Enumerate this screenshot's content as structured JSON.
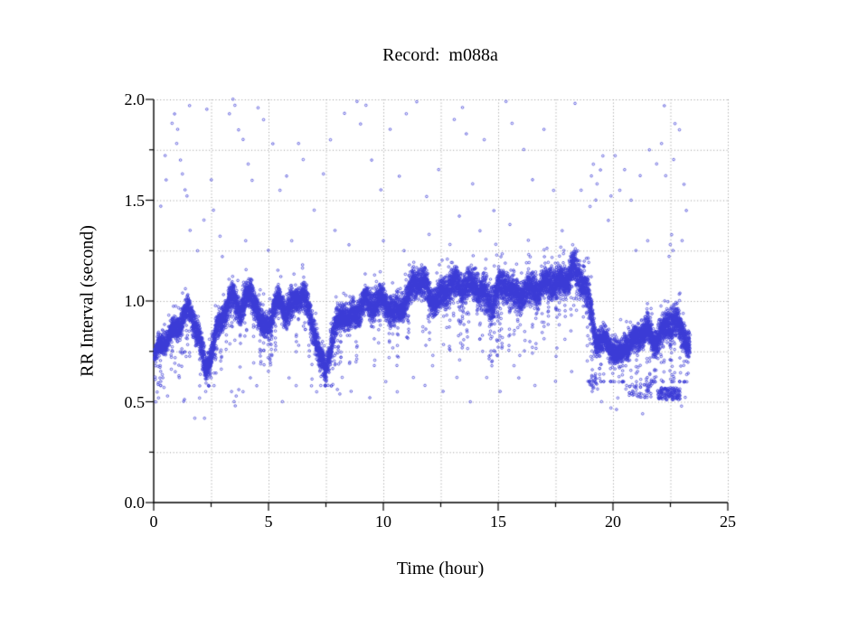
{
  "chart_data": {
    "type": "scatter",
    "title": "Record:  m088a",
    "xlabel": "Time (hour)",
    "ylabel": "RR Interval (second)",
    "xlim": [
      0,
      25
    ],
    "ylim": [
      0.0,
      2.0
    ],
    "x_tick_values": [
      0,
      5,
      10,
      15,
      20,
      25
    ],
    "x_tick_labels": [
      "0",
      "5",
      "10",
      "15",
      "20",
      "25"
    ],
    "x_minor_step": 2.5,
    "y_tick_values": [
      0.0,
      0.5,
      1.0,
      1.5,
      2.0
    ],
    "y_tick_labels": [
      "0.0",
      "0.5",
      "1.0",
      "1.5",
      "2.0"
    ],
    "y_minor_step": 0.25,
    "grid": "dotted, at every minor and major tick",
    "legend": "none",
    "marker": "small open circle",
    "marker_color": "#3b3bd6",
    "grid_color": "#9a9a9a",
    "axis_color": "#000000",
    "background_color": "#ffffff",
    "t_start": 0.04,
    "t_end": 23.35,
    "seed": 987654321,
    "band_t0": 0.0,
    "band_t_step": 0.25,
    "band_mean": [
      0.7,
      0.76,
      0.8,
      0.84,
      0.88,
      0.93,
      0.96,
      0.9,
      0.78,
      0.64,
      0.74,
      0.86,
      0.94,
      1.0,
      1.02,
      0.94,
      0.98,
      1.03,
      0.96,
      0.88,
      0.91,
      0.96,
      1.0,
      0.93,
      0.96,
      1.01,
      1.04,
      0.97,
      0.86,
      0.7,
      0.66,
      0.78,
      0.88,
      0.94,
      0.91,
      0.95,
      0.98,
      1.0,
      0.96,
      0.98,
      1.0,
      0.97,
      0.95,
      0.98,
      1.01,
      1.06,
      1.1,
      1.07,
      1.03,
      1.0,
      1.04,
      1.07,
      1.09,
      1.07,
      1.04,
      1.07,
      1.09,
      1.06,
      1.03,
      1.0,
      1.04,
      1.07,
      1.05,
      1.01,
      1.04,
      1.06,
      1.08,
      1.05,
      1.07,
      1.09,
      1.07,
      1.09,
      1.12,
      1.17,
      1.14,
      1.08,
      0.95,
      0.8,
      0.78,
      0.81,
      0.77,
      0.74,
      0.79,
      0.77,
      0.8,
      0.83,
      0.85,
      0.8,
      0.84,
      0.87,
      0.91,
      0.88,
      0.83,
      0.78
    ],
    "band_half": [
      0.05,
      0.06,
      0.06,
      0.06,
      0.07,
      0.07,
      0.07,
      0.08,
      0.1,
      0.07,
      0.08,
      0.08,
      0.08,
      0.08,
      0.08,
      0.09,
      0.08,
      0.08,
      0.09,
      0.08,
      0.08,
      0.08,
      0.08,
      0.09,
      0.09,
      0.08,
      0.08,
      0.09,
      0.09,
      0.08,
      0.07,
      0.09,
      0.08,
      0.08,
      0.08,
      0.08,
      0.08,
      0.08,
      0.09,
      0.08,
      0.08,
      0.09,
      0.09,
      0.08,
      0.08,
      0.09,
      0.09,
      0.09,
      0.09,
      0.09,
      0.09,
      0.09,
      0.09,
      0.1,
      0.1,
      0.09,
      0.09,
      0.1,
      0.1,
      0.1,
      0.1,
      0.09,
      0.1,
      0.1,
      0.09,
      0.09,
      0.09,
      0.1,
      0.09,
      0.09,
      0.1,
      0.09,
      0.09,
      0.1,
      0.1,
      0.1,
      0.12,
      0.09,
      0.08,
      0.08,
      0.08,
      0.08,
      0.08,
      0.08,
      0.08,
      0.08,
      0.08,
      0.08,
      0.09,
      0.09,
      0.1,
      0.09,
      0.09,
      0.08
    ],
    "outliers_high": [
      [
        0.3,
        1.47
      ],
      [
        0.5,
        1.72
      ],
      [
        0.55,
        1.6
      ],
      [
        0.8,
        1.88
      ],
      [
        0.9,
        1.93
      ],
      [
        1.0,
        1.78
      ],
      [
        1.05,
        1.85
      ],
      [
        1.15,
        1.7
      ],
      [
        1.25,
        1.63
      ],
      [
        1.35,
        1.55
      ],
      [
        1.45,
        1.52
      ],
      [
        1.55,
        1.97
      ],
      [
        1.6,
        1.35
      ],
      [
        1.9,
        1.25
      ],
      [
        2.2,
        1.4
      ],
      [
        2.3,
        1.95
      ],
      [
        2.5,
        1.6
      ],
      [
        2.6,
        1.45
      ],
      [
        2.9,
        1.32
      ],
      [
        3.0,
        1.22
      ],
      [
        3.3,
        1.93
      ],
      [
        3.45,
        2.0
      ],
      [
        3.55,
        1.97
      ],
      [
        3.7,
        1.85
      ],
      [
        3.9,
        1.8
      ],
      [
        4.0,
        1.3
      ],
      [
        4.1,
        1.68
      ],
      [
        4.3,
        1.6
      ],
      [
        4.55,
        1.96
      ],
      [
        4.8,
        1.9
      ],
      [
        5.0,
        1.25
      ],
      [
        5.2,
        1.78
      ],
      [
        5.5,
        1.55
      ],
      [
        5.8,
        1.62
      ],
      [
        6.0,
        1.3
      ],
      [
        6.3,
        1.78
      ],
      [
        6.5,
        1.7
      ],
      [
        7.0,
        1.45
      ],
      [
        7.4,
        1.63
      ],
      [
        7.7,
        1.8
      ],
      [
        7.9,
        1.35
      ],
      [
        8.3,
        1.93
      ],
      [
        8.5,
        1.28
      ],
      [
        8.85,
        1.99
      ],
      [
        9.0,
        1.88
      ],
      [
        9.25,
        1.97
      ],
      [
        9.5,
        1.7
      ],
      [
        9.9,
        1.55
      ],
      [
        10.0,
        1.3
      ],
      [
        10.3,
        1.85
      ],
      [
        10.7,
        1.62
      ],
      [
        10.9,
        1.25
      ],
      [
        11.0,
        1.93
      ],
      [
        11.45,
        1.99
      ],
      [
        11.9,
        1.52
      ],
      [
        12.0,
        1.33
      ],
      [
        12.4,
        1.65
      ],
      [
        12.9,
        1.28
      ],
      [
        13.1,
        1.9
      ],
      [
        13.3,
        1.42
      ],
      [
        13.45,
        1.96
      ],
      [
        13.6,
        1.83
      ],
      [
        13.9,
        1.58
      ],
      [
        14.2,
        1.35
      ],
      [
        14.4,
        1.8
      ],
      [
        14.8,
        1.45
      ],
      [
        14.9,
        1.28
      ],
      [
        15.35,
        1.99
      ],
      [
        15.6,
        1.88
      ],
      [
        15.5,
        1.38
      ],
      [
        16.1,
        1.75
      ],
      [
        16.3,
        1.3
      ],
      [
        16.5,
        1.6
      ],
      [
        17.0,
        1.85
      ],
      [
        17.4,
        1.55
      ],
      [
        17.8,
        1.35
      ],
      [
        18.35,
        1.98
      ],
      [
        18.6,
        1.55
      ],
      [
        19.0,
        1.47
      ],
      [
        19.05,
        1.62
      ],
      [
        19.15,
        1.68
      ],
      [
        19.25,
        1.5
      ],
      [
        19.3,
        1.58
      ],
      [
        19.45,
        1.65
      ],
      [
        19.55,
        1.72
      ],
      [
        19.8,
        1.4
      ],
      [
        19.9,
        1.52
      ],
      [
        20.1,
        1.72
      ],
      [
        20.3,
        1.55
      ],
      [
        20.5,
        1.65
      ],
      [
        20.8,
        1.5
      ],
      [
        21.0,
        1.25
      ],
      [
        21.2,
        1.62
      ],
      [
        21.5,
        1.3
      ],
      [
        21.6,
        1.75
      ],
      [
        21.9,
        1.68
      ],
      [
        22.1,
        1.78
      ],
      [
        22.25,
        1.97
      ],
      [
        22.3,
        1.62
      ],
      [
        22.45,
        1.22
      ],
      [
        22.5,
        1.28
      ],
      [
        22.55,
        1.33
      ],
      [
        22.6,
        1.25
      ],
      [
        22.65,
        1.7
      ],
      [
        22.7,
        1.88
      ],
      [
        22.9,
        1.85
      ],
      [
        23.0,
        1.3
      ],
      [
        23.1,
        1.58
      ],
      [
        23.2,
        1.45
      ]
    ],
    "outliers_low": [
      [
        0.1,
        0.5
      ],
      [
        0.15,
        0.55
      ],
      [
        0.2,
        0.52
      ],
      [
        0.3,
        0.6
      ],
      [
        0.45,
        0.57
      ],
      [
        0.6,
        0.53
      ],
      [
        1.1,
        0.62
      ],
      [
        1.3,
        0.5
      ],
      [
        1.35,
        0.51
      ],
      [
        1.8,
        0.42
      ],
      [
        2.0,
        0.52
      ],
      [
        2.2,
        0.42
      ],
      [
        2.25,
        0.55
      ],
      [
        2.5,
        0.62
      ],
      [
        3.4,
        0.55
      ],
      [
        3.5,
        0.5
      ],
      [
        3.55,
        0.48
      ],
      [
        3.6,
        0.53
      ],
      [
        3.7,
        0.56
      ],
      [
        3.9,
        0.55
      ],
      [
        4.2,
        0.62
      ],
      [
        4.5,
        0.58
      ],
      [
        5.6,
        0.5
      ],
      [
        5.9,
        0.62
      ],
      [
        6.2,
        0.58
      ],
      [
        7.1,
        0.55
      ],
      [
        7.6,
        0.58
      ],
      [
        8.0,
        0.56
      ],
      [
        8.1,
        0.54
      ],
      [
        8.2,
        0.62
      ],
      [
        8.6,
        0.55
      ],
      [
        9.4,
        0.52
      ],
      [
        10.1,
        0.6
      ],
      [
        10.6,
        0.55
      ],
      [
        11.3,
        0.62
      ],
      [
        11.8,
        0.58
      ],
      [
        12.6,
        0.55
      ],
      [
        13.2,
        0.62
      ],
      [
        13.8,
        0.5
      ],
      [
        14.5,
        0.62
      ],
      [
        15.1,
        0.55
      ],
      [
        15.9,
        0.62
      ],
      [
        16.6,
        0.58
      ],
      [
        17.5,
        0.6
      ],
      [
        18.2,
        0.65
      ],
      [
        18.9,
        0.6
      ],
      [
        19.1,
        0.55
      ],
      [
        19.5,
        0.5
      ],
      [
        19.9,
        0.47
      ],
      [
        20.15,
        0.46
      ],
      [
        20.2,
        0.52
      ],
      [
        21.3,
        0.44
      ],
      [
        23.0,
        0.48
      ],
      [
        23.15,
        0.52
      ]
    ],
    "low_clusters": [
      {
        "t0": 19.0,
        "t1": 19.35,
        "rr0": 0.56,
        "rr1": 0.64,
        "n": 22
      },
      {
        "t0": 20.55,
        "t1": 21.75,
        "rr0": 0.52,
        "rr1": 0.59,
        "n": 55
      },
      {
        "t0": 21.95,
        "t1": 22.95,
        "rr0": 0.51,
        "rr1": 0.57,
        "n": 150
      }
    ]
  }
}
